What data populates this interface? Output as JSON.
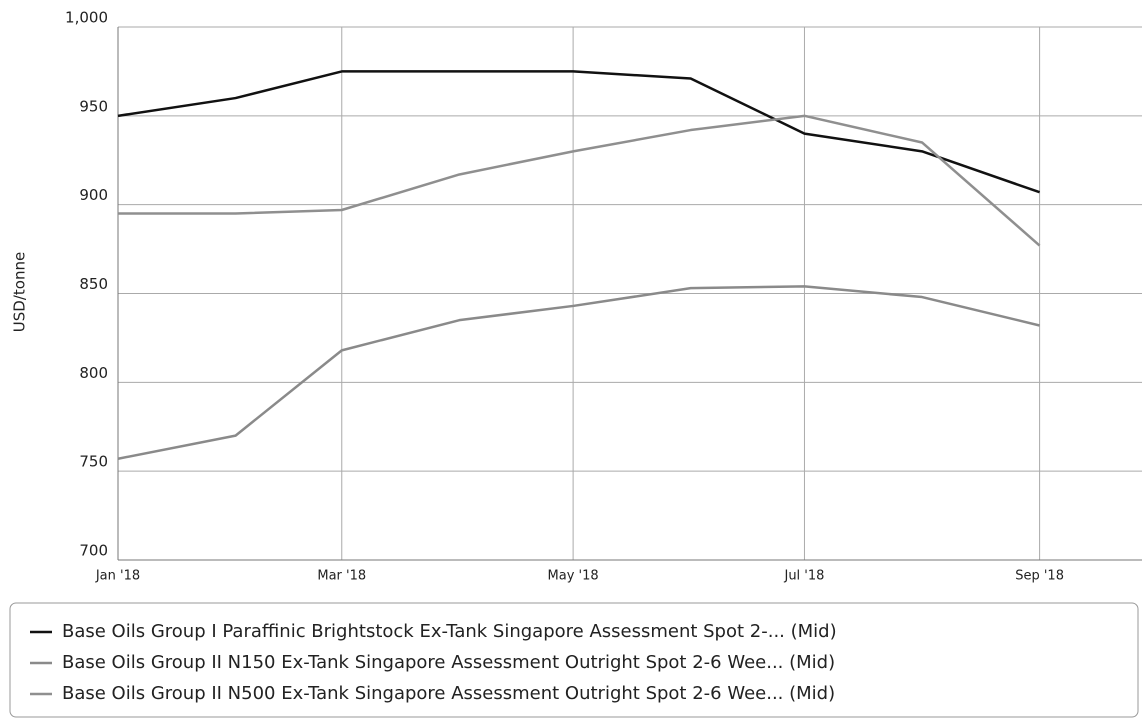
{
  "chart_data": {
    "type": "line",
    "y_label": "USD/tonne",
    "x": [
      "2018-01-01",
      "2018-02-01",
      "2018-03-01",
      "2018-04-01",
      "2018-05-01",
      "2018-06-01",
      "2018-07-01",
      "2018-08-01",
      "2018-09-01"
    ],
    "xlim": [
      "2018-01-01",
      "2018-09-28"
    ],
    "xticks": [
      {
        "value": "2018-01-01",
        "label": "Jan '18"
      },
      {
        "value": "2018-03-01",
        "label": "Mar '18"
      },
      {
        "value": "2018-05-01",
        "label": "May '18"
      },
      {
        "value": "2018-07-01",
        "label": "Jul '18"
      },
      {
        "value": "2018-09-01",
        "label": "Sep '18"
      }
    ],
    "ylim": [
      700,
      1000
    ],
    "yticks": [
      700,
      750,
      800,
      850,
      900,
      950,
      {
        "value": 1000,
        "label": "1,000"
      }
    ],
    "grid": true,
    "series": [
      {
        "name": "Base Oils Group I Paraffinic Brightstock Ex-Tank Singapore Assessment Spot 2-... (Mid)",
        "color": "#111111",
        "values": [
          950,
          960,
          975,
          975,
          975,
          971,
          940,
          930,
          907
        ]
      },
      {
        "name": "Base Oils Group II N150 Ex-Tank Singapore Assessment Outright Spot 2-6 Wee... (Mid)",
        "color": "#8a8a8a",
        "values": [
          757,
          770,
          818,
          835,
          843,
          853,
          854,
          848,
          832
        ]
      },
      {
        "name": "Base Oils Group II N500 Ex-Tank Singapore Assessment Outright Spot 2-6 Wee... (Mid)",
        "color": "#8f8f8f",
        "values": [
          895,
          895,
          897,
          917,
          930,
          942,
          950,
          935,
          877
        ]
      }
    ]
  }
}
